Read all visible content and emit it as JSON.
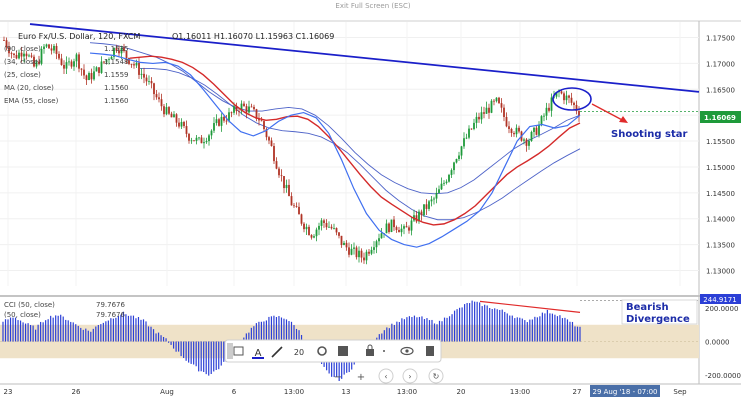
{
  "window": {
    "exit_fullscreen_label": "Exit Full Screen (ESC)"
  },
  "header": {
    "symbol": "Euro Fx/U.S. Dollar, 120, FXCM",
    "ohlc": "O1.16011  H1.16070  L1.15963  C1.16069"
  },
  "indicators": [
    {
      "label": "(90, close)",
      "value": "1.1535",
      "color": "#7b8fd6"
    },
    {
      "label": "(34, close)",
      "value": "1.1548",
      "color": "#9aa4dd"
    },
    {
      "label": "(25, close)",
      "value": "1.1559",
      "color": "#4e63c8"
    },
    {
      "label": "MA (20, close)",
      "value": "1.1560",
      "color": "#3f6ff0"
    },
    {
      "label": "EMA (55, close)",
      "value": "1.1560",
      "color": "#d42a2a"
    }
  ],
  "cci_panel": {
    "rows": [
      {
        "label": "CCI (50, close)",
        "value": "79.7676",
        "color": "#2b3fd6"
      },
      {
        "label": "(50, close)",
        "value": "79.7676",
        "color": "#2b3fd6"
      }
    ],
    "last_value_tag": "244.9171"
  },
  "annotations": {
    "shooting_star": "Shooting star",
    "bearish_divergence": "Bearish\nDivergence"
  },
  "last_price_tag": "1.16069",
  "crosshair_time": "29 Aug '18 - 07:00",
  "toolbar": {
    "line_width": "20"
  },
  "colors": {
    "candle_up": "#1e9a3a",
    "candle_down": "#b03325",
    "trendline": "#1a1fc9",
    "ema": "#d42a2a",
    "ma": "#3f6ff0",
    "band": "#4e63c8",
    "cci_fill": "#2b3fd6",
    "cci_band": "#efe2c8",
    "annotation_text": "#1c2ca8",
    "arrow_red": "#e02a2a"
  },
  "chart_data": [
    {
      "type": "candlestick",
      "title": "Euro Fx/U.S. Dollar, 120, FXCM",
      "ylim": [
        1.127,
        1.178
      ],
      "y_ticks": [
        "1.17500",
        "1.17000",
        "1.16500",
        "1.16000",
        "1.15500",
        "1.15000",
        "1.14500",
        "1.14000",
        "1.13500",
        "1.13000"
      ],
      "x_tick_labels": [
        "23",
        "26",
        "Aug",
        "6",
        "13:00",
        "13",
        "13:00",
        "20",
        "13:00",
        "27",
        "Sep"
      ],
      "close_path": [
        1.1745,
        1.1712,
        1.1728,
        1.169,
        1.1735,
        1.1722,
        1.169,
        1.1715,
        1.1668,
        1.1685,
        1.1708,
        1.1735,
        1.1712,
        1.169,
        1.1664,
        1.1628,
        1.16,
        1.1585,
        1.156,
        1.1548,
        1.1565,
        1.159,
        1.16,
        1.1618,
        1.161,
        1.159,
        1.154,
        1.148,
        1.143,
        1.1395,
        1.137,
        1.1395,
        1.138,
        1.135,
        1.1335,
        1.1325,
        1.1355,
        1.138,
        1.139,
        1.1375,
        1.1398,
        1.142,
        1.144,
        1.1475,
        1.152,
        1.1555,
        1.159,
        1.161,
        1.1625,
        1.1585,
        1.1565,
        1.155,
        1.1575,
        1.1615,
        1.1645,
        1.163,
        1.1607
      ],
      "series": [
        {
          "name": "EMA (55, close)",
          "values": [
            1.171,
            1.1712,
            1.1714,
            1.1712,
            1.1708,
            1.1702,
            1.1692,
            1.1678,
            1.166,
            1.164,
            1.162,
            1.1605,
            1.1595,
            1.159,
            1.1592,
            1.1597,
            1.1598,
            1.1592,
            1.1578,
            1.1558,
            1.1535,
            1.151,
            1.1485,
            1.1462,
            1.1442,
            1.1428,
            1.1415,
            1.1402,
            1.1393,
            1.1388,
            1.139,
            1.1398,
            1.141,
            1.1425,
            1.1445,
            1.1465,
            1.1485,
            1.15,
            1.1512,
            1.1525,
            1.154,
            1.1558,
            1.1575,
            1.1585
          ]
        },
        {
          "name": "MA (20, close)",
          "values": [
            1.172,
            1.1718,
            1.1715,
            1.1708,
            1.1702,
            1.17,
            1.1702,
            1.1695,
            1.1678,
            1.165,
            1.162,
            1.159,
            1.1568,
            1.156,
            1.157,
            1.1588,
            1.16,
            1.1605,
            1.1595,
            1.1565,
            1.1515,
            1.1458,
            1.141,
            1.1378,
            1.136,
            1.135,
            1.1345,
            1.1352,
            1.1365,
            1.138,
            1.1395,
            1.1415,
            1.145,
            1.15,
            1.155,
            1.1578,
            1.1582,
            1.1575,
            1.158,
            1.16
          ]
        },
        {
          "name": "upper band",
          "values": [
            1.174,
            1.1738,
            1.1735,
            1.1728,
            1.172,
            1.1712,
            1.17,
            1.1685,
            1.1665,
            1.1645,
            1.1628,
            1.1615,
            1.1608,
            1.1608,
            1.1612,
            1.1615,
            1.1612,
            1.16,
            1.158,
            1.1555,
            1.1528,
            1.1505,
            1.1485,
            1.147,
            1.1458,
            1.145,
            1.1448,
            1.145,
            1.146,
            1.1475,
            1.1495,
            1.1515,
            1.1535,
            1.155,
            1.1562,
            1.1575,
            1.159,
            1.16
          ]
        },
        {
          "name": "lower band",
          "values": [
            1.169,
            1.169,
            1.1688,
            1.1682,
            1.1672,
            1.1658,
            1.164,
            1.162,
            1.16,
            1.1585,
            1.1575,
            1.157,
            1.1568,
            1.1565,
            1.1558,
            1.1545,
            1.1528,
            1.1505,
            1.148,
            1.1455,
            1.1435,
            1.1418,
            1.1405,
            1.1398,
            1.1398,
            1.1402,
            1.1412,
            1.1425,
            1.144,
            1.1458,
            1.1475,
            1.1492,
            1.1508,
            1.1522,
            1.1535
          ]
        }
      ],
      "trendline": {
        "from": [
          0.0,
          1.1776
        ],
        "to": [
          1.0,
          1.1645
        ]
      },
      "current_price": 1.16069
    },
    {
      "type": "histogram",
      "title": "CCI (50, close)",
      "ylim": [
        -230,
        260
      ],
      "y_ticks": [
        200.0,
        0.0,
        -200.0
      ],
      "y_tick_labels": [
        "200.0000",
        "0.0000",
        "-200.0000"
      ],
      "band": [
        -100,
        100
      ],
      "values": [
        120,
        150,
        110,
        80,
        140,
        160,
        130,
        90,
        60,
        110,
        140,
        170,
        150,
        120,
        60,
        10,
        -60,
        -120,
        -170,
        -200,
        -150,
        -80,
        20,
        90,
        130,
        150,
        140,
        80,
        -10,
        -120,
        -200,
        -230,
        -160,
        -80,
        10,
        70,
        110,
        140,
        150,
        130,
        110,
        160,
        200,
        240,
        220,
        200,
        180,
        150,
        120,
        150,
        180,
        160,
        120,
        80
      ],
      "divergence_line": {
        "from": 240,
        "to": 150
      },
      "last_value": 244.9171
    }
  ]
}
